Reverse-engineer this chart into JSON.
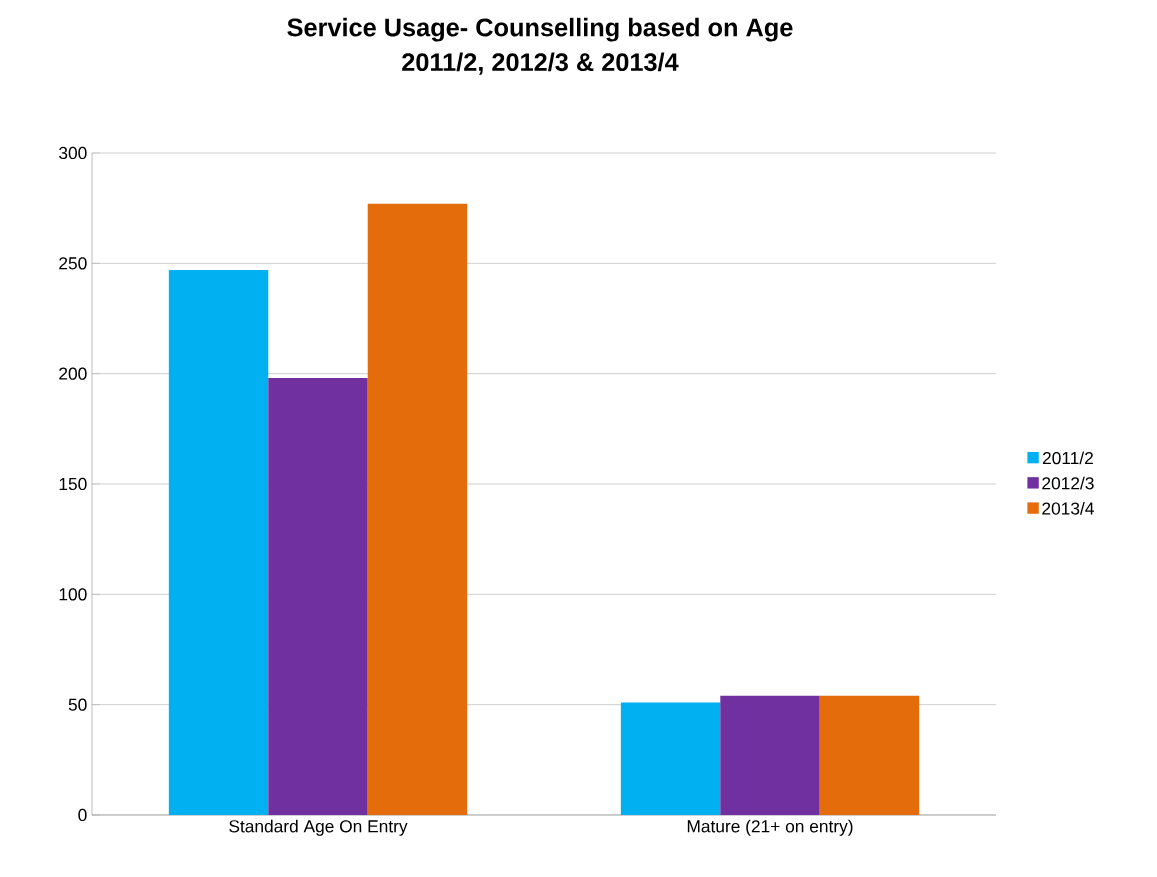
{
  "chart_data": {
    "type": "bar",
    "title": "Service Usage- Counselling based on Age\n2011/2, 2012/3 & 2013/4",
    "categories": [
      "Standard Age On Entry",
      "Mature (21+ on entry)"
    ],
    "series": [
      {
        "name": "2011/2",
        "color": "#00b0f0",
        "values": [
          247,
          51
        ]
      },
      {
        "name": "2012/3",
        "color": "#7030a0",
        "values": [
          198,
          54
        ]
      },
      {
        "name": "2013/4",
        "color": "#e46c0a",
        "values": [
          277,
          54
        ]
      }
    ],
    "ylim": [
      0,
      300
    ],
    "yticks": [
      0,
      50,
      100,
      150,
      200,
      250,
      300
    ],
    "grid": "y",
    "legend": "right"
  }
}
